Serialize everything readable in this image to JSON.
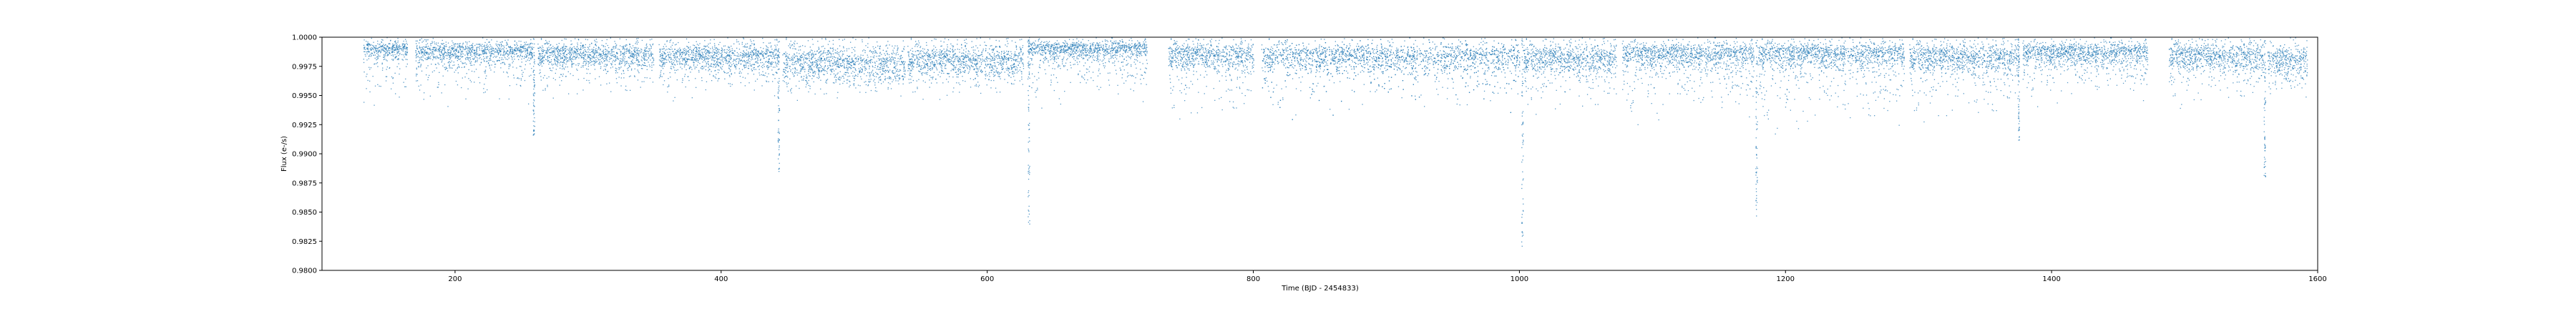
{
  "chart_data": {
    "type": "scatter",
    "title": "",
    "xlabel": "Time (BJD - 2454833)",
    "ylabel": "Flux (e-/s)",
    "xlim": [
      100,
      1600
    ],
    "ylim": [
      0.98,
      1.0
    ],
    "x_ticks": [
      200,
      400,
      600,
      800,
      1000,
      1200,
      1400,
      1600
    ],
    "x_tick_labels": [
      "200",
      "400",
      "600",
      "800",
      "1000",
      "1200",
      "1400",
      "1600"
    ],
    "y_ticks": [
      0.98,
      0.9825,
      0.985,
      0.9875,
      0.99,
      0.9925,
      0.995,
      0.9975,
      1.0
    ],
    "y_tick_labels": [
      "0.9800",
      "0.9825",
      "0.9850",
      "0.9875",
      "0.9900",
      "0.9925",
      "0.9950",
      "0.9975",
      "1.0000"
    ],
    "grid": false,
    "legend": "none",
    "marker_color": "#1f77b4",
    "data_segments": [
      {
        "x_start": 131,
        "x_end": 164,
        "core": 0.9994,
        "spread": 0.0012,
        "tail_low": 0.9955
      },
      {
        "x_start": 170,
        "x_end": 258,
        "core": 0.9992,
        "spread": 0.0014,
        "tail_low": 0.9958
      },
      {
        "x_start": 262,
        "x_end": 349,
        "core": 0.999,
        "spread": 0.0015,
        "tail_low": 0.9962
      },
      {
        "x_start": 353,
        "x_end": 443,
        "core": 0.9989,
        "spread": 0.0016,
        "tail_low": 0.9962
      },
      {
        "x_start": 446,
        "x_end": 538,
        "core": 0.9983,
        "spread": 0.0016,
        "tail_low": 0.996
      },
      {
        "x_start": 540,
        "x_end": 627,
        "core": 0.9986,
        "spread": 0.0016,
        "tail_low": 0.996
      },
      {
        "x_start": 630,
        "x_end": 720,
        "core": 0.9994,
        "spread": 0.0013,
        "tail_low": 0.996
      },
      {
        "x_start": 736,
        "x_end": 800,
        "core": 0.999,
        "spread": 0.0017,
        "tail_low": 0.995
      },
      {
        "x_start": 806,
        "x_end": 1000,
        "core": 0.9989,
        "spread": 0.0018,
        "tail_low": 0.9952
      },
      {
        "x_start": 1003,
        "x_end": 1073,
        "core": 0.9988,
        "spread": 0.0018,
        "tail_low": 0.9952
      },
      {
        "x_start": 1077,
        "x_end": 1176,
        "core": 0.9991,
        "spread": 0.0017,
        "tail_low": 0.995
      },
      {
        "x_start": 1179,
        "x_end": 1289,
        "core": 0.9991,
        "spread": 0.0018,
        "tail_low": 0.9945
      },
      {
        "x_start": 1293,
        "x_end": 1375,
        "core": 0.9989,
        "spread": 0.0018,
        "tail_low": 0.9948
      },
      {
        "x_start": 1378,
        "x_end": 1472,
        "core": 0.9992,
        "spread": 0.0016,
        "tail_low": 0.996
      },
      {
        "x_start": 1488,
        "x_end": 1559,
        "core": 0.9989,
        "spread": 0.0016,
        "tail_low": 0.9958
      },
      {
        "x_start": 1562,
        "x_end": 1592,
        "core": 0.9985,
        "spread": 0.0016,
        "tail_low": 0.996
      }
    ],
    "transit_dips": [
      {
        "x": 259,
        "depth": 0.9915
      },
      {
        "x": 443,
        "depth": 0.9885
      },
      {
        "x": 631,
        "depth": 0.984
      },
      {
        "x": 1002,
        "depth": 0.982
      },
      {
        "x": 1178,
        "depth": 0.9845
      },
      {
        "x": 1375,
        "depth": 0.991
      },
      {
        "x": 1560,
        "depth": 0.988
      }
    ]
  }
}
